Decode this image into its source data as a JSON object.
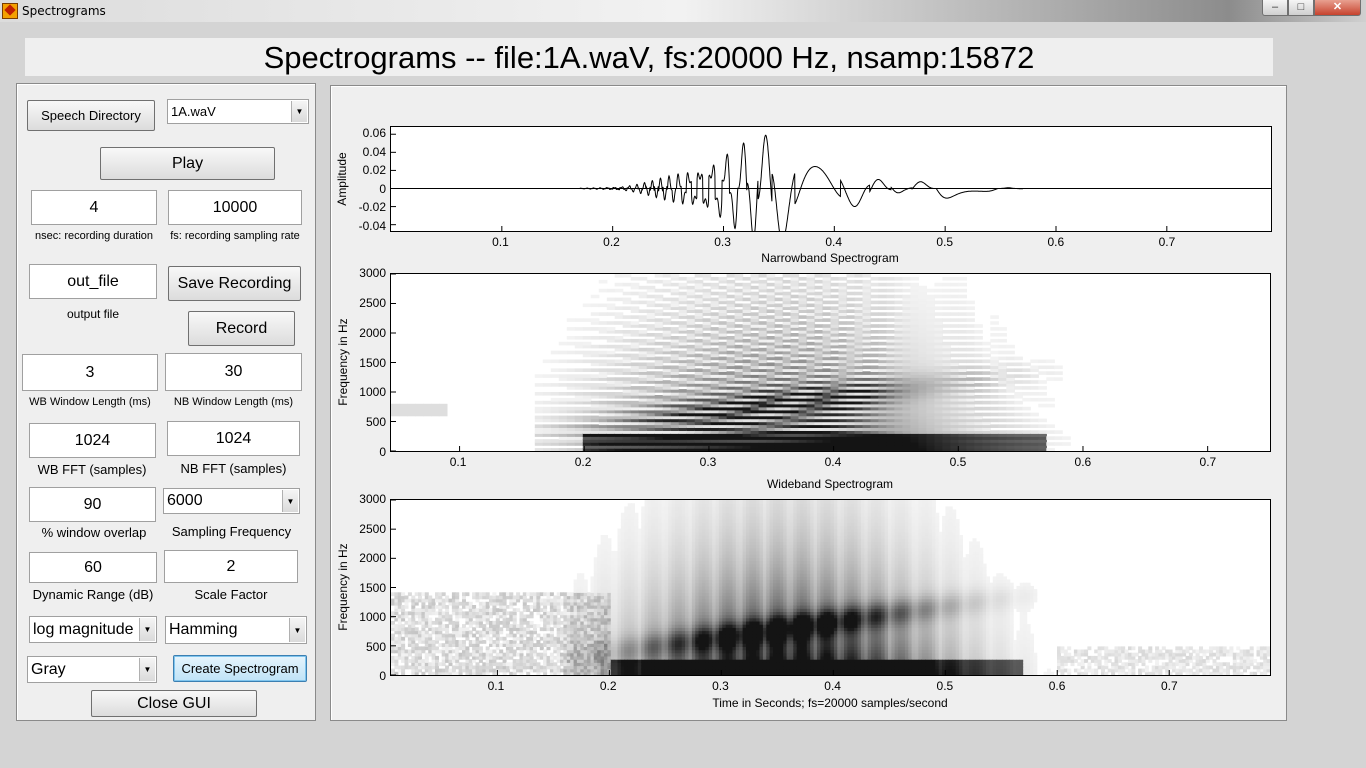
{
  "window": {
    "title": "Spectrograms",
    "min_glyph": "–",
    "max_glyph": "□",
    "close_glyph": "✕"
  },
  "header": {
    "title": "Spectrograms --  file:1A.waV, fs:20000 Hz, nsamp:15872"
  },
  "controls": {
    "speech_directory_label": "Speech Directory",
    "file_select_value": "1A.waV",
    "play_label": "Play",
    "nsec_value": "4",
    "nsec_caption": "nsec: recording duration",
    "fs_value": "10000",
    "fs_caption": "fs: recording sampling rate",
    "output_file_value": "out_file",
    "output_file_caption": "output file",
    "save_recording_label": "Save Recording",
    "record_label": "Record",
    "wb_window_value": "3",
    "wb_window_caption": "WB Window Length (ms)",
    "nb_window_value": "30",
    "nb_window_caption": "NB Window Length (ms)",
    "wb_fft_value": "1024",
    "wb_fft_caption": "WB FFT (samples)",
    "nb_fft_value": "1024",
    "nb_fft_caption": "NB FFT (samples)",
    "overlap_value": "90",
    "overlap_caption": "% window overlap",
    "sampling_freq_value": "6000",
    "sampling_freq_caption": "Sampling Frequency",
    "dynamic_range_value": "60",
    "dynamic_range_caption": "Dynamic Range (dB)",
    "scale_factor_value": "2",
    "scale_factor_caption": "Scale Factor",
    "magnitude_value": "log magnitude",
    "window_type_value": "Hamming",
    "colormap_value": "Gray",
    "create_spectrogram_label": "Create Spectrogram",
    "close_gui_label": "Close GUI"
  },
  "chart_data": [
    {
      "type": "line",
      "ylabel": "Amplitude",
      "x_ticks": [
        "0.1",
        "0.2",
        "0.3",
        "0.4",
        "0.5",
        "0.6",
        "0.7"
      ],
      "y_ticks": [
        "0.06",
        "0.04",
        "0.02",
        "0",
        "-0.02",
        "-0.04"
      ],
      "xlim": [
        0,
        0.794
      ],
      "ylim": [
        -0.047,
        0.068
      ],
      "xlabel": "Narrowband Spectrogram"
    },
    {
      "type": "heatmap",
      "ylabel": "Frequency in Hz",
      "x_ticks": [
        "0.1",
        "0.2",
        "0.3",
        "0.4",
        "0.5",
        "0.6",
        "0.7"
      ],
      "y_ticks": [
        "3000",
        "2500",
        "2000",
        "1500",
        "1000",
        "500",
        "0"
      ],
      "xlim": [
        0.045,
        0.75
      ],
      "ylim": [
        0,
        3000
      ],
      "xlabel": "Wideband Spectrogram"
    },
    {
      "type": "heatmap",
      "ylabel": "Frequency in Hz",
      "x_ticks": [
        "0.1",
        "0.2",
        "0.3",
        "0.4",
        "0.5",
        "0.6",
        "0.7"
      ],
      "y_ticks": [
        "3000",
        "2500",
        "2000",
        "1500",
        "1000",
        "500",
        "0"
      ],
      "xlim": [
        0.005,
        0.79
      ],
      "ylim": [
        0,
        3000
      ],
      "xlabel": "Time in Seconds; fs=20000 samples/second"
    }
  ]
}
